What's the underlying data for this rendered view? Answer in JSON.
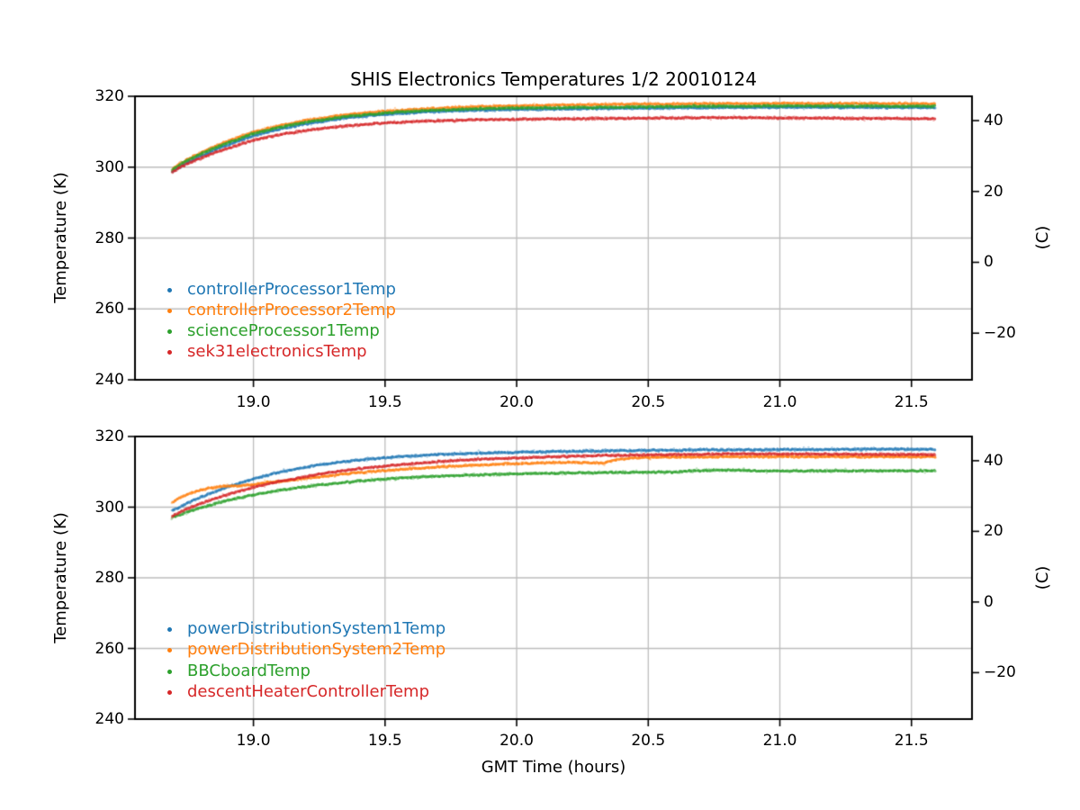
{
  "figure_title": "SHIS Electronics Temperatures 1/2 20010124",
  "colors": {
    "blue": "#1f77b4",
    "orange": "#ff7f0e",
    "green": "#2ca02c",
    "red": "#d62728",
    "grid": "#bdbdbd",
    "spine": "#000000",
    "background": "#ffffff"
  },
  "chart_data": [
    {
      "type": "scatter",
      "ylabel": "Temperature (K)",
      "xlabel": "",
      "right_axis": {
        "label": "(C)",
        "tick_labels": [
          "40",
          "20",
          "0",
          "−20"
        ],
        "tick_values_c": [
          40,
          20,
          0,
          -20
        ],
        "offset_k": 273.15
      },
      "xlim": [
        18.55,
        21.73
      ],
      "ylim": [
        240,
        320
      ],
      "xticks": {
        "labels": [
          "19.0",
          "19.5",
          "20.0",
          "20.5",
          "21.0",
          "21.5"
        ],
        "values": [
          19.0,
          19.5,
          20.0,
          20.5,
          21.0,
          21.5
        ]
      },
      "yticks": {
        "labels": [
          "240",
          "260",
          "280",
          "300",
          "320"
        ],
        "values": [
          240,
          260,
          280,
          300,
          320
        ]
      },
      "grid": true,
      "legend_loc": "lower left",
      "series": [
        {
          "name": "controllerProcessor1Temp",
          "color": "#1f77b4",
          "points": [
            [
              18.69,
              298.6
            ],
            [
              18.73,
              300.6
            ],
            [
              18.78,
              302.5
            ],
            [
              18.85,
              304.8
            ],
            [
              18.92,
              306.8
            ],
            [
              19.0,
              308.9
            ],
            [
              19.1,
              310.8
            ],
            [
              19.2,
              312.2
            ],
            [
              19.35,
              313.9
            ],
            [
              19.5,
              314.9
            ],
            [
              19.65,
              315.6
            ],
            [
              19.85,
              316.1
            ],
            [
              20.1,
              316.4
            ],
            [
              20.4,
              316.6
            ],
            [
              20.7,
              316.8
            ],
            [
              21.0,
              316.9
            ],
            [
              21.3,
              316.9
            ],
            [
              21.59,
              316.8
            ]
          ]
        },
        {
          "name": "controllerProcessor2Temp",
          "color": "#ff7f0e",
          "points": [
            [
              18.69,
              299.3
            ],
            [
              18.73,
              301.4
            ],
            [
              18.78,
              303.4
            ],
            [
              18.85,
              305.8
            ],
            [
              18.92,
              307.8
            ],
            [
              19.0,
              309.9
            ],
            [
              19.1,
              311.8
            ],
            [
              19.2,
              313.2
            ],
            [
              19.35,
              314.8
            ],
            [
              19.5,
              315.8
            ],
            [
              19.65,
              316.5
            ],
            [
              19.85,
              317.1
            ],
            [
              20.1,
              317.5
            ],
            [
              20.4,
              317.8
            ],
            [
              20.7,
              317.9
            ],
            [
              21.0,
              318.0
            ],
            [
              21.3,
              318.0
            ],
            [
              21.59,
              317.9
            ]
          ]
        },
        {
          "name": "scienceProcessor1Temp",
          "color": "#2ca02c",
          "points": [
            [
              18.69,
              299.2
            ],
            [
              18.73,
              301.2
            ],
            [
              18.78,
              303.1
            ],
            [
              18.85,
              305.4
            ],
            [
              18.92,
              307.4
            ],
            [
              19.0,
              309.5
            ],
            [
              19.1,
              311.3
            ],
            [
              19.2,
              312.7
            ],
            [
              19.35,
              314.3
            ],
            [
              19.5,
              315.3
            ],
            [
              19.65,
              316.0
            ],
            [
              19.85,
              316.5
            ],
            [
              20.1,
              316.8
            ],
            [
              20.4,
              317.0
            ],
            [
              20.7,
              317.2
            ],
            [
              21.0,
              317.3
            ],
            [
              21.3,
              317.3
            ],
            [
              21.59,
              317.2
            ]
          ]
        },
        {
          "name": "sek31electronicsTemp",
          "color": "#d62728",
          "points": [
            [
              18.69,
              298.5
            ],
            [
              18.73,
              300.3
            ],
            [
              18.78,
              302.0
            ],
            [
              18.85,
              304.0
            ],
            [
              18.92,
              305.8
            ],
            [
              19.0,
              307.6
            ],
            [
              19.1,
              309.2
            ],
            [
              19.2,
              310.4
            ],
            [
              19.35,
              311.7
            ],
            [
              19.5,
              312.5
            ],
            [
              19.65,
              313.0
            ],
            [
              19.85,
              313.4
            ],
            [
              20.1,
              313.6
            ],
            [
              20.4,
              313.8
            ],
            [
              20.6,
              313.9
            ],
            [
              20.8,
              314.0
            ],
            [
              21.0,
              313.9
            ],
            [
              21.3,
              313.8
            ],
            [
              21.59,
              313.7
            ]
          ]
        }
      ]
    },
    {
      "type": "scatter",
      "ylabel": "Temperature (K)",
      "xlabel": "GMT Time (hours)",
      "right_axis": {
        "label": "(C)",
        "tick_labels": [
          "40",
          "20",
          "0",
          "−20"
        ],
        "tick_values_c": [
          40,
          20,
          0,
          -20
        ],
        "offset_k": 273.15
      },
      "xlim": [
        18.55,
        21.73
      ],
      "ylim": [
        240,
        320
      ],
      "xticks": {
        "labels": [
          "19.0",
          "19.5",
          "20.0",
          "20.5",
          "21.0",
          "21.5"
        ],
        "values": [
          19.0,
          19.5,
          20.0,
          20.5,
          21.0,
          21.5
        ]
      },
      "yticks": {
        "labels": [
          "240",
          "260",
          "280",
          "300",
          "320"
        ],
        "values": [
          240,
          260,
          280,
          300,
          320
        ]
      },
      "grid": true,
      "legend_loc": "lower left",
      "series": [
        {
          "name": "powerDistributionSystem1Temp",
          "color": "#1f77b4",
          "points": [
            [
              18.69,
              299.0
            ],
            [
              18.72,
              300.0
            ],
            [
              18.76,
              301.6
            ],
            [
              18.82,
              303.5
            ],
            [
              18.9,
              305.7
            ],
            [
              19.0,
              308.0
            ],
            [
              19.1,
              309.9
            ],
            [
              19.25,
              312.0
            ],
            [
              19.4,
              313.4
            ],
            [
              19.55,
              314.3
            ],
            [
              19.7,
              314.9
            ],
            [
              19.9,
              315.4
            ],
            [
              20.1,
              315.7
            ],
            [
              20.4,
              316.0
            ],
            [
              20.7,
              316.2
            ],
            [
              21.0,
              316.3
            ],
            [
              21.3,
              316.4
            ],
            [
              21.59,
              316.4
            ]
          ]
        },
        {
          "name": "powerDistributionSystem2Temp",
          "color": "#ff7f0e",
          "points": [
            [
              18.69,
              301.2
            ],
            [
              18.73,
              303.1
            ],
            [
              18.78,
              304.5
            ],
            [
              18.84,
              305.5
            ],
            [
              18.9,
              306.1
            ],
            [
              18.95,
              306.0
            ],
            [
              19.0,
              306.4
            ],
            [
              19.05,
              307.0
            ],
            [
              19.12,
              307.4
            ],
            [
              19.2,
              308.1
            ],
            [
              19.35,
              309.4
            ],
            [
              19.5,
              310.4
            ],
            [
              19.7,
              311.4
            ],
            [
              19.9,
              312.1
            ],
            [
              20.1,
              312.6
            ],
            [
              20.25,
              312.7
            ],
            [
              20.33,
              312.5
            ],
            [
              20.38,
              313.5
            ],
            [
              20.45,
              314.0
            ],
            [
              20.6,
              314.2
            ],
            [
              20.9,
              314.3
            ],
            [
              21.2,
              314.3
            ],
            [
              21.59,
              314.3
            ]
          ]
        },
        {
          "name": "BBCboardTemp",
          "color": "#2ca02c",
          "points": [
            [
              18.69,
              297.1
            ],
            [
              18.75,
              298.7
            ],
            [
              18.82,
              300.3
            ],
            [
              18.9,
              301.9
            ],
            [
              19.0,
              303.5
            ],
            [
              19.1,
              304.8
            ],
            [
              19.25,
              306.3
            ],
            [
              19.4,
              307.4
            ],
            [
              19.55,
              308.2
            ],
            [
              19.7,
              308.8
            ],
            [
              19.9,
              309.3
            ],
            [
              20.1,
              309.6
            ],
            [
              20.3,
              309.8
            ],
            [
              20.5,
              309.9
            ],
            [
              20.62,
              310.0
            ],
            [
              20.68,
              310.4
            ],
            [
              20.85,
              310.5
            ],
            [
              20.95,
              310.2
            ],
            [
              21.1,
              310.3
            ],
            [
              21.3,
              310.3
            ],
            [
              21.59,
              310.3
            ]
          ]
        },
        {
          "name": "descentHeaterControllerTemp",
          "color": "#d62728",
          "points": [
            [
              18.69,
              297.4
            ],
            [
              18.75,
              299.6
            ],
            [
              18.82,
              301.6
            ],
            [
              18.9,
              303.6
            ],
            [
              19.0,
              305.6
            ],
            [
              19.1,
              307.3
            ],
            [
              19.25,
              309.4
            ],
            [
              19.4,
              310.9
            ],
            [
              19.55,
              312.0
            ],
            [
              19.7,
              312.9
            ],
            [
              19.9,
              313.7
            ],
            [
              20.1,
              314.2
            ],
            [
              20.3,
              314.6
            ],
            [
              20.6,
              314.9
            ],
            [
              20.9,
              315.1
            ],
            [
              21.2,
              315.0
            ],
            [
              21.59,
              314.9
            ]
          ]
        }
      ]
    }
  ]
}
